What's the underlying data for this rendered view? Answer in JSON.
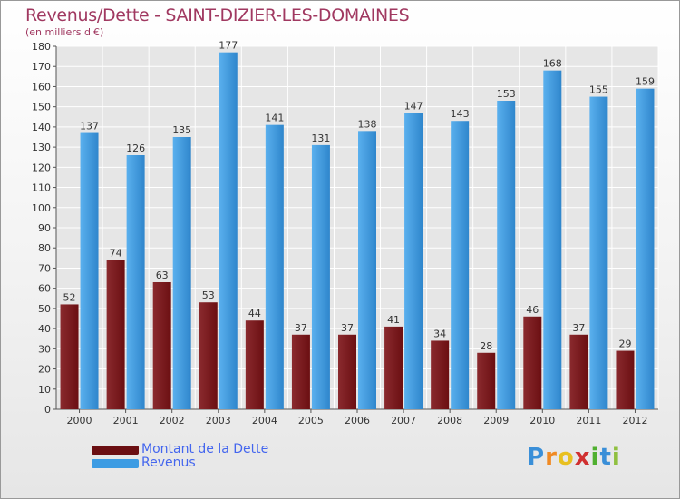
{
  "title": "Revenus/Dette - SAINT-DIZIER-LES-DOMAINES",
  "subtitle": "(en milliers d'€)",
  "colors": {
    "title": "#a03860",
    "dette": "#6b0f12",
    "revenus": "#3d9ce3",
    "legend_text": "#4466ee",
    "grid": "#ffffff"
  },
  "chart_data": {
    "type": "bar",
    "categories": [
      "2000",
      "2001",
      "2002",
      "2003",
      "2004",
      "2005",
      "2006",
      "2007",
      "2008",
      "2009",
      "2010",
      "2011",
      "2012"
    ],
    "series": [
      {
        "name": "Montant de la Dette",
        "values": [
          52,
          74,
          63,
          53,
          44,
          37,
          37,
          41,
          34,
          28,
          46,
          37,
          29
        ]
      },
      {
        "name": "Revenus",
        "values": [
          137,
          126,
          135,
          177,
          141,
          131,
          138,
          147,
          143,
          153,
          168,
          155,
          159
        ]
      }
    ],
    "ylim": [
      0,
      180
    ],
    "yticks": [
      0,
      10,
      20,
      30,
      40,
      50,
      60,
      70,
      80,
      90,
      100,
      110,
      120,
      130,
      140,
      150,
      160,
      170,
      180
    ],
    "grid": true,
    "legend_position": "bottom-left"
  },
  "legend": {
    "dette_label": "Montant de la Dette",
    "revenus_label": "Revenus"
  },
  "logo": {
    "letters": [
      "P",
      "r",
      "o",
      "x",
      "i",
      "t",
      "i"
    ],
    "colors": [
      "#3a8fd8",
      "#f08a24",
      "#e8c020",
      "#d03030",
      "#50b030",
      "#3a8fd8",
      "#90c040"
    ]
  }
}
